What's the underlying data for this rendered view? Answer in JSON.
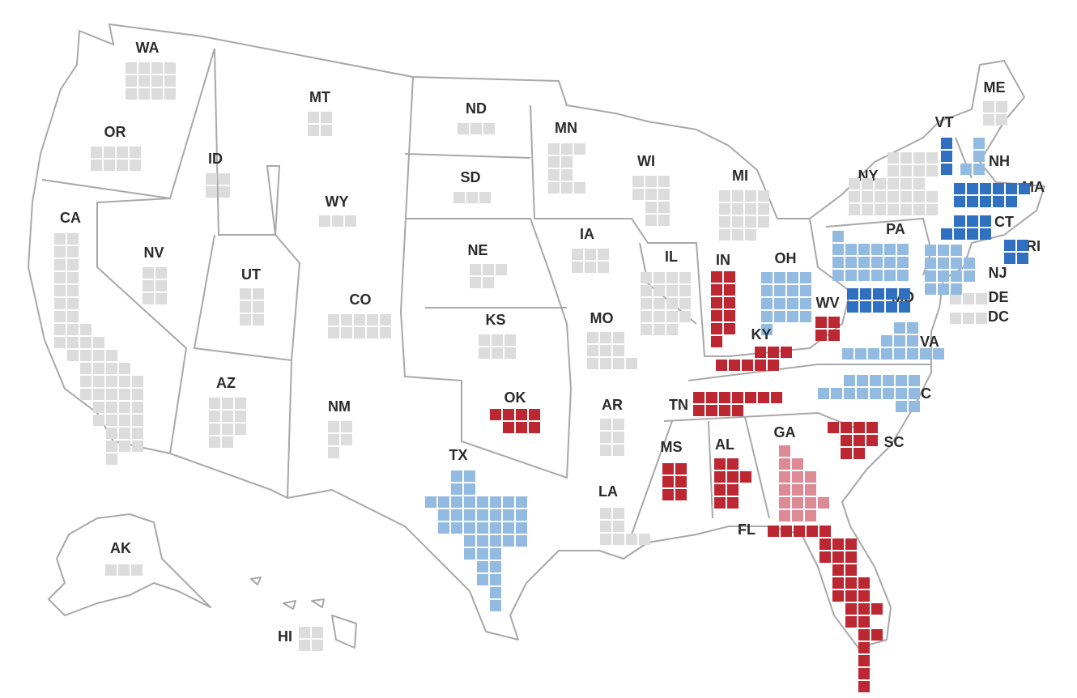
{
  "states": [
    {
      "label": "WA",
      "squares": 12,
      "color": "#dcdcdc"
    },
    {
      "label": "OR",
      "squares": 8,
      "color": "#dcdcdc"
    },
    {
      "label": "CA",
      "squares": 54,
      "color": "#dcdcdc"
    },
    {
      "label": "NV",
      "squares": 6,
      "color": "#dcdcdc"
    },
    {
      "label": "ID",
      "squares": 4,
      "color": "#dcdcdc"
    },
    {
      "label": "MT",
      "squares": 4,
      "color": "#dcdcdc"
    },
    {
      "label": "WY",
      "squares": 3,
      "color": "#dcdcdc"
    },
    {
      "label": "UT",
      "squares": 6,
      "color": "#dcdcdc"
    },
    {
      "label": "CO",
      "squares": 10,
      "color": "#dcdcdc"
    },
    {
      "label": "AZ",
      "squares": 11,
      "color": "#dcdcdc"
    },
    {
      "label": "NM",
      "squares": 5,
      "color": "#dcdcdc"
    },
    {
      "label": "ND",
      "squares": 3,
      "color": "#dcdcdc"
    },
    {
      "label": "SD",
      "squares": 3,
      "color": "#dcdcdc"
    },
    {
      "label": "NE",
      "squares": 5,
      "color": "#dcdcdc"
    },
    {
      "label": "KS",
      "squares": 6,
      "color": "#dcdcdc"
    },
    {
      "label": "OK",
      "squares": 7,
      "color": "#bd2732"
    },
    {
      "label": "TX",
      "squares": 40,
      "color": "#93bbe2"
    },
    {
      "label": "MN",
      "squares": 10,
      "color": "#dcdcdc"
    },
    {
      "label": "IA",
      "squares": 6,
      "color": "#dcdcdc"
    },
    {
      "label": "MO",
      "squares": 10,
      "color": "#dcdcdc"
    },
    {
      "label": "AR",
      "squares": 6,
      "color": "#dcdcdc"
    },
    {
      "label": "LA",
      "squares": 8,
      "color": "#dcdcdc"
    },
    {
      "label": "WI",
      "squares": 10,
      "color": "#dcdcdc"
    },
    {
      "label": "IL",
      "squares": 19,
      "color": "#dcdcdc"
    },
    {
      "label": "MI",
      "squares": 15,
      "color": "#dcdcdc"
    },
    {
      "label": "IN",
      "squares": 11,
      "color": "#bd2732"
    },
    {
      "label": "OH",
      "squares": 17,
      "color": "#93bbe2"
    },
    {
      "label": "KY",
      "squares": 8,
      "color": "#bd2732"
    },
    {
      "label": "TN",
      "squares": 11,
      "color": "#bd2732"
    },
    {
      "label": "MS",
      "squares": 6,
      "color": "#bd2732"
    },
    {
      "label": "AL",
      "squares": 9,
      "color": "#bd2732"
    },
    {
      "label": "GA",
      "squares": 16,
      "color": "#dc8a96"
    },
    {
      "label": "FL",
      "squares": 30,
      "color": "#bd2732"
    },
    {
      "label": "SC",
      "squares": 9,
      "color": "#bd2732"
    },
    {
      "label": "NC",
      "squares": 16,
      "color": "#93bbe2"
    },
    {
      "label": "VA",
      "squares": 13,
      "color": "#93bbe2"
    },
    {
      "label": "WV",
      "squares": 4,
      "color": "#bd2732"
    },
    {
      "label": "MD",
      "squares": 10,
      "color": "#2f70c1"
    },
    {
      "label": "DE",
      "squares": 3,
      "color": "#dcdcdc"
    },
    {
      "label": "DC",
      "squares": 3,
      "color": "#dcdcdc"
    },
    {
      "label": "PA",
      "squares": 19,
      "color": "#93bbe2"
    },
    {
      "label": "NJ",
      "squares": 14,
      "color": "#93bbe2"
    },
    {
      "label": "NY",
      "squares": 28,
      "color": "#dcdcdc"
    },
    {
      "label": "VT",
      "squares": 3,
      "color": "#2f70c1"
    },
    {
      "label": "NH",
      "squares": 4,
      "color": "#93bbe2"
    },
    {
      "label": "MA",
      "squares": 11,
      "color": "#2f70c1"
    },
    {
      "label": "CT",
      "squares": 7,
      "color": "#2f70c1"
    },
    {
      "label": "RI",
      "squares": 4,
      "color": "#2f70c1"
    },
    {
      "label": "ME",
      "squares": 4,
      "color": "#dcdcdc"
    },
    {
      "label": "AK",
      "squares": 3,
      "color": "#dcdcdc"
    },
    {
      "label": "HI",
      "squares": 4,
      "color": "#dcdcdc"
    }
  ]
}
